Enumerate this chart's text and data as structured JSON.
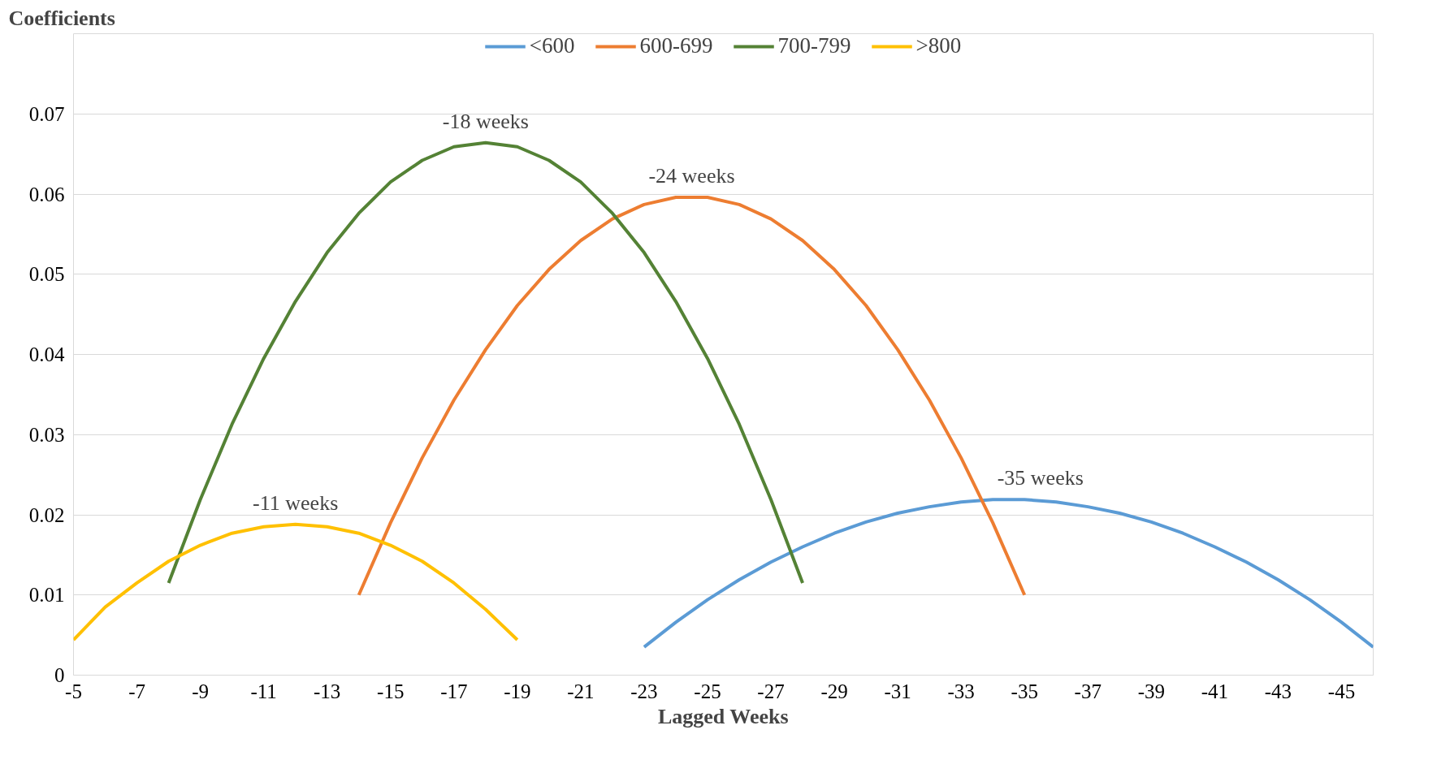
{
  "chart_data": {
    "type": "line",
    "ylabel": "Coefficients",
    "xlabel": "Lagged Weeks",
    "xlim": [
      -5,
      -46
    ],
    "xticks": [
      -5,
      -7,
      -9,
      -11,
      -13,
      -15,
      -17,
      -19,
      -21,
      -23,
      -25,
      -27,
      -29,
      -31,
      -33,
      -35,
      -37,
      -39,
      -41,
      -43,
      -45
    ],
    "ylim": [
      0,
      0.08
    ],
    "yticks": [
      {
        "value": 0,
        "label": "0"
      },
      {
        "value": 0.01,
        "label": "0.01"
      },
      {
        "value": 0.02,
        "label": "0.02"
      },
      {
        "value": 0.03,
        "label": "0.03"
      },
      {
        "value": 0.04,
        "label": "0.04"
      },
      {
        "value": 0.05,
        "label": "0.05"
      },
      {
        "value": 0.06,
        "label": "0.06"
      },
      {
        "value": 0.07,
        "label": "0.07"
      }
    ],
    "grid": "y",
    "legend": "top",
    "marker": "none",
    "line_style": "solid",
    "series": [
      {
        "name": "<600",
        "color": "#5b9bd5",
        "x": [
          -23,
          -24,
          -25,
          -26,
          -27,
          -28,
          -29,
          -30,
          -31,
          -32,
          -33,
          -34,
          -35,
          -36,
          -37,
          -38,
          -39,
          -40,
          -41,
          -42,
          -43,
          -44,
          -45,
          -46
        ],
        "values": [
          0.0035,
          0.0066,
          0.0094,
          0.0119,
          0.0141,
          0.016,
          0.0177,
          0.0191,
          0.0202,
          0.021,
          0.0216,
          0.0219,
          0.0219,
          0.0216,
          0.021,
          0.0202,
          0.0191,
          0.0177,
          0.016,
          0.0141,
          0.0119,
          0.0094,
          0.0066,
          0.0035
        ]
      },
      {
        "name": "600-699",
        "color": "#ed7d31",
        "x": [
          -14,
          -15,
          -16,
          -17,
          -18,
          -19,
          -20,
          -21,
          -22,
          -23,
          -24,
          -25,
          -26,
          -27,
          -28,
          -29,
          -30,
          -31,
          -32,
          -33,
          -34,
          -35
        ],
        "values": [
          0.01,
          0.019,
          0.0271,
          0.0343,
          0.0406,
          0.0461,
          0.0506,
          0.0542,
          0.0569,
          0.0587,
          0.0596,
          0.0596,
          0.0587,
          0.0569,
          0.0542,
          0.0506,
          0.0461,
          0.0406,
          0.0343,
          0.0271,
          0.019,
          0.01
        ]
      },
      {
        "name": "700-799",
        "color": "#548235",
        "x": [
          -8,
          -9,
          -10,
          -11,
          -12,
          -13,
          -14,
          -15,
          -16,
          -17,
          -18,
          -19,
          -20,
          -21,
          -22,
          -23,
          -24,
          -25,
          -26,
          -27,
          -28
        ],
        "values": [
          0.0115,
          0.0219,
          0.0313,
          0.0395,
          0.0466,
          0.0527,
          0.0576,
          0.0615,
          0.0642,
          0.0659,
          0.0664,
          0.0659,
          0.0642,
          0.0615,
          0.0576,
          0.0527,
          0.0466,
          0.0395,
          0.0313,
          0.0219,
          0.0115
        ]
      },
      {
        "name": ">800",
        "color": "#ffc000",
        "x": [
          -5,
          -6,
          -7,
          -8,
          -9,
          -10,
          -11,
          -12,
          -13,
          -14,
          -15,
          -16,
          -17,
          -18,
          -19
        ],
        "values": [
          0.0044,
          0.0085,
          0.0115,
          0.0142,
          0.0162,
          0.0177,
          0.0185,
          0.0188,
          0.0185,
          0.0177,
          0.0162,
          0.0142,
          0.0115,
          0.0082,
          0.0044
        ]
      }
    ],
    "annotations": [
      {
        "text": "-11 weeks",
        "x": -12,
        "y": 0.0188
      },
      {
        "text": "-18 weeks",
        "x": -18,
        "y": 0.0664
      },
      {
        "text": "-24 weeks",
        "x": -24.5,
        "y": 0.0596
      },
      {
        "text": "-35 weeks",
        "x": -35.5,
        "y": 0.0219
      }
    ]
  }
}
